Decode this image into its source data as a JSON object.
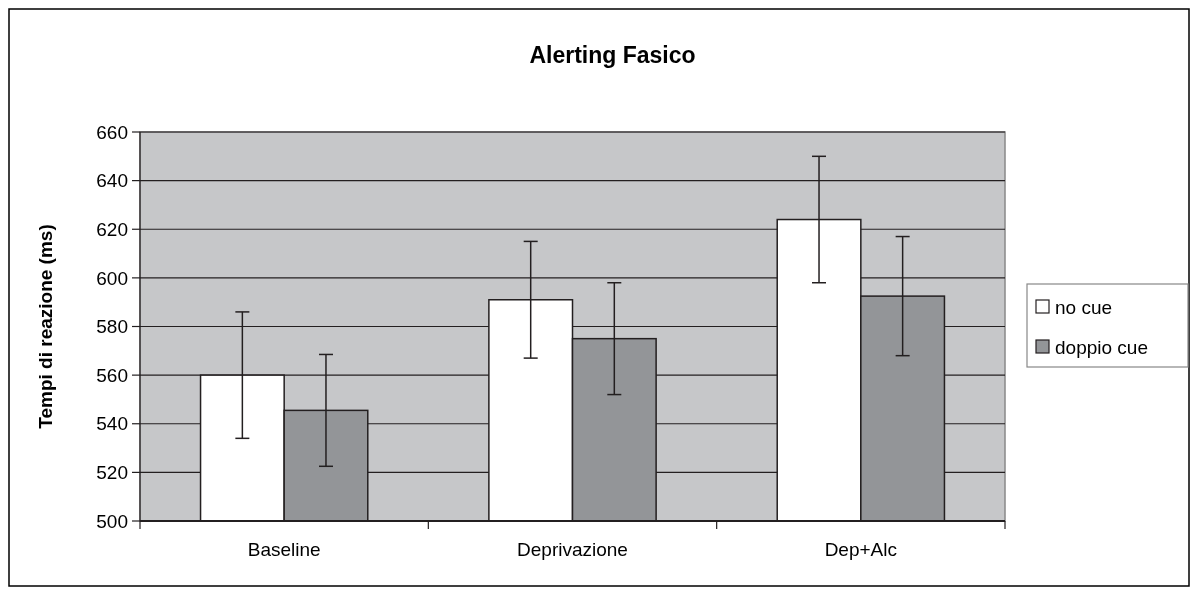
{
  "chart_data": {
    "type": "bar",
    "title": "Alerting Fasico",
    "ylabel": "Tempi di reazione (ms)",
    "categories": [
      "Baseline",
      "Deprivazione",
      "Dep+Alc"
    ],
    "series": [
      {
        "name": "no cue",
        "color": "#ffffff",
        "values": [
          560,
          591,
          624
        ],
        "errors": [
          26,
          24,
          26
        ]
      },
      {
        "name": "doppio cue",
        "color": "#939598",
        "values": [
          545.5,
          575,
          592.5
        ],
        "errors": [
          23,
          23,
          24.5
        ]
      }
    ],
    "ylim": [
      500,
      660
    ],
    "yticks": [
      500,
      520,
      540,
      560,
      580,
      600,
      620,
      640,
      660
    ],
    "grid": "y",
    "legend": "right"
  }
}
